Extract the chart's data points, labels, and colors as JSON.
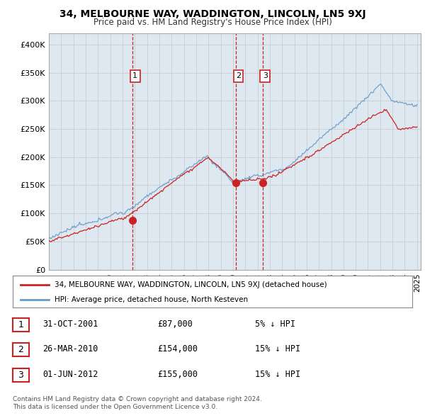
{
  "title": "34, MELBOURNE WAY, WADDINGTON, LINCOLN, LN5 9XJ",
  "subtitle": "Price paid vs. HM Land Registry's House Price Index (HPI)",
  "ylabel_ticks": [
    "£0",
    "£50K",
    "£100K",
    "£150K",
    "£200K",
    "£250K",
    "£300K",
    "£350K",
    "£400K"
  ],
  "ytick_values": [
    0,
    50000,
    100000,
    150000,
    200000,
    250000,
    300000,
    350000,
    400000
  ],
  "ylim": [
    0,
    420000
  ],
  "xlim_start": 1995.0,
  "xlim_end": 2025.3,
  "sale_dates": [
    2001.83,
    2010.24,
    2012.42
  ],
  "sale_prices": [
    87000,
    154000,
    155000
  ],
  "sale_labels": [
    "1",
    "2",
    "3"
  ],
  "legend_line1": "34, MELBOURNE WAY, WADDINGTON, LINCOLN, LN5 9XJ (detached house)",
  "legend_line2": "HPI: Average price, detached house, North Kesteven",
  "table_rows": [
    {
      "num": "1",
      "date": "31-OCT-2001",
      "price": "£87,000",
      "pct": "5% ↓ HPI"
    },
    {
      "num": "2",
      "date": "26-MAR-2010",
      "price": "£154,000",
      "pct": "15% ↓ HPI"
    },
    {
      "num": "3",
      "date": "01-JUN-2012",
      "price": "£155,000",
      "pct": "15% ↓ HPI"
    }
  ],
  "footnote1": "Contains HM Land Registry data © Crown copyright and database right 2024.",
  "footnote2": "This data is licensed under the Open Government Licence v3.0.",
  "hpi_color": "#6699cc",
  "price_color": "#cc2222",
  "vline_color": "#cc2222",
  "grid_color": "#cccccc",
  "plot_bg_color": "#dde8f0",
  "background_color": "#ffffff"
}
